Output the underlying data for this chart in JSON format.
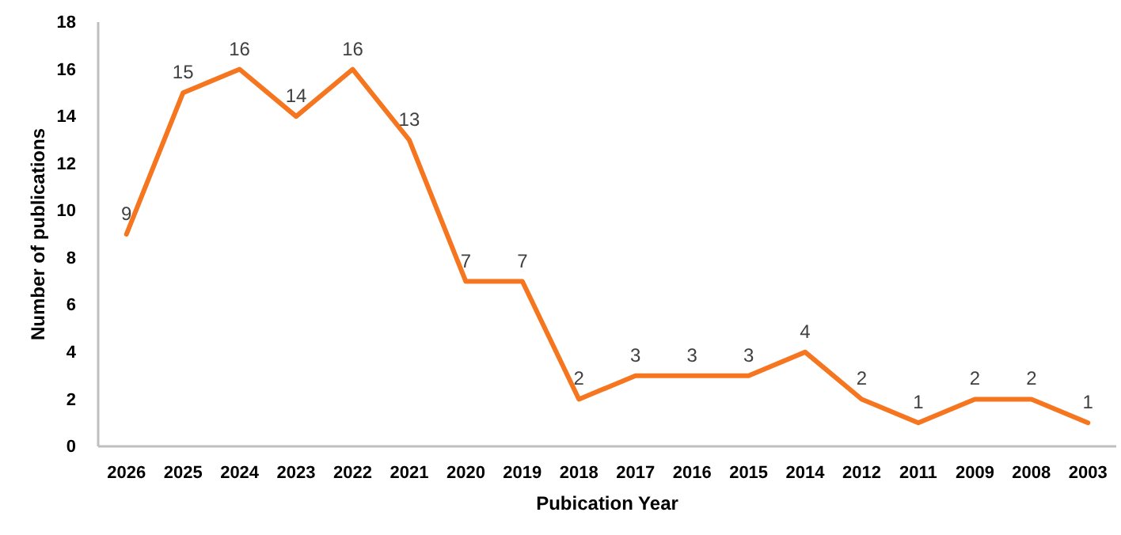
{
  "chart_data": {
    "type": "line",
    "xlabel": "Pubication Year",
    "ylabel": "Number of publications",
    "categories": [
      "2026",
      "2025",
      "2024",
      "2023",
      "2022",
      "2021",
      "2020",
      "2019",
      "2018",
      "2017",
      "2016",
      "2015",
      "2014",
      "2012",
      "2011",
      "2009",
      "2008",
      "2003"
    ],
    "series": [
      {
        "color": "#f5761f",
        "values": [
          9,
          15,
          16,
          14,
          16,
          13,
          7,
          7,
          2,
          3,
          3,
          3,
          4,
          2,
          1,
          2,
          2,
          1
        ]
      }
    ],
    "ylim": [
      0,
      18
    ],
    "yticks": [
      0,
      2,
      4,
      6,
      8,
      10,
      12,
      14,
      16,
      18
    ],
    "grid": false,
    "marker": "none",
    "line_style": "solid",
    "data_labels": true
  }
}
